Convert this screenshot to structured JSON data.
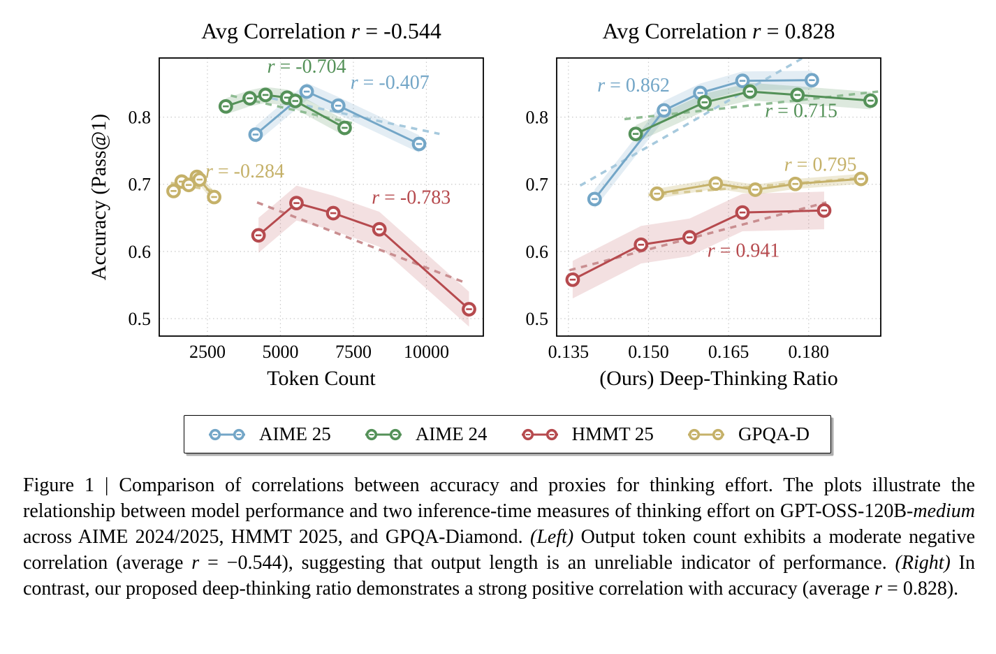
{
  "chart_data": [
    {
      "type": "line",
      "title": "Avg Correlation r = -0.544",
      "xlabel": "Token Count",
      "ylabel": "Accuracy (Pass@1)",
      "xlim": [
        850,
        11950
      ],
      "ylim": [
        0.474,
        0.888
      ],
      "grid": true,
      "x_ticks": [
        {
          "v": 2500,
          "label": "2500"
        },
        {
          "v": 5000,
          "label": "5000"
        },
        {
          "v": 7500,
          "label": "7500"
        },
        {
          "v": 10000,
          "label": "10000"
        }
      ],
      "y_ticks": [
        {
          "v": 0.8,
          "label": "0.8"
        },
        {
          "v": 0.7,
          "label": "0.7"
        },
        {
          "v": 0.6,
          "label": "0.6"
        },
        {
          "v": 0.5,
          "label": "0.5"
        }
      ],
      "series": [
        {
          "name": "AIME 25",
          "color": "#73A6C7",
          "dash_color": "#A6C9DD",
          "band": 0.013,
          "band_opacity": 0.2,
          "x": [
            4150,
            5900,
            6980,
            9750
          ],
          "y": [
            0.774,
            0.838,
            0.817,
            0.76
          ],
          "trend": {
            "x": [
              4700,
              10450
            ],
            "y": [
              0.828,
              0.775
            ]
          },
          "annotation": {
            "text": "r = -0.407",
            "x": 8750,
            "y": 0.842
          }
        },
        {
          "name": "AIME 24",
          "color": "#549158",
          "dash_color": "#8FBC93",
          "band": 0.012,
          "band_opacity": 0.2,
          "x": [
            3130,
            3950,
            4490,
            5230,
            5510,
            7200
          ],
          "y": [
            0.816,
            0.828,
            0.833,
            0.829,
            0.824,
            0.784
          ],
          "trend": {
            "x": [
              3300,
              7450
            ],
            "y": [
              0.832,
              0.791
            ]
          },
          "annotation": {
            "text": "r = -0.704",
            "x": 5900,
            "y": 0.866
          }
        },
        {
          "name": "HMMT 25",
          "color": "#B64A4E",
          "dash_color": "#C98E90",
          "band": 0.026,
          "band_opacity": 0.17,
          "x": [
            4250,
            5550,
            6810,
            8390,
            11460
          ],
          "y": [
            0.624,
            0.672,
            0.657,
            0.633,
            0.514
          ],
          "trend": {
            "x": [
              4200,
              11300
            ],
            "y": [
              0.673,
              0.554
            ]
          },
          "annotation": {
            "text": "r = -0.783",
            "x": 9480,
            "y": 0.671
          }
        },
        {
          "name": "GPQA-D",
          "color": "#C5B169",
          "dash_color": "#D6C993",
          "band": 0.008,
          "band_opacity": 0.27,
          "x": [
            1340,
            1620,
            1860,
            2140,
            2230,
            2730
          ],
          "y": [
            0.69,
            0.704,
            0.699,
            0.711,
            0.707,
            0.681
          ],
          "trend": {
            "x": [
              1250,
              2800
            ],
            "y": [
              0.702,
              0.69
            ]
          },
          "annotation": {
            "text": "r = -0.284",
            "x": 3780,
            "y": 0.71
          }
        }
      ]
    },
    {
      "type": "line",
      "title": "Avg Correlation r = 0.828",
      "xlabel": "(Ours) Deep-Thinking Ratio",
      "ylabel": "",
      "xlim": [
        0.1328,
        0.1935
      ],
      "ylim": [
        0.474,
        0.888
      ],
      "grid": true,
      "x_ticks": [
        {
          "v": 0.135,
          "label": "0.135"
        },
        {
          "v": 0.15,
          "label": "0.150"
        },
        {
          "v": 0.165,
          "label": "0.165"
        },
        {
          "v": 0.18,
          "label": "0.180"
        }
      ],
      "y_ticks": [
        {
          "v": 0.8,
          "label": "0.8"
        },
        {
          "v": 0.7,
          "label": "0.7"
        },
        {
          "v": 0.6,
          "label": "0.6"
        },
        {
          "v": 0.5,
          "label": "0.5"
        }
      ],
      "series": [
        {
          "name": "AIME 25",
          "color": "#73A6C7",
          "dash_color": "#A6C9DD",
          "band": 0.014,
          "band_opacity": 0.2,
          "x": [
            0.1399,
            0.1529,
            0.1597,
            0.1676,
            0.1806
          ],
          "y": [
            0.678,
            0.81,
            0.836,
            0.854,
            0.855
          ],
          "trend": {
            "x": [
              0.1372,
              0.179
            ],
            "y": [
              0.698,
              0.8885
            ]
          },
          "annotation": {
            "text": "r = 0.862",
            "x": 0.1472,
            "y": 0.838
          }
        },
        {
          "name": "AIME 24",
          "color": "#549158",
          "dash_color": "#8FBC93",
          "band": 0.013,
          "band_opacity": 0.2,
          "x": [
            0.1476,
            0.1605,
            0.169,
            0.1779,
            0.1916
          ],
          "y": [
            0.775,
            0.822,
            0.838,
            0.833,
            0.8245
          ],
          "trend": {
            "x": [
              0.1455,
              0.193
            ],
            "y": [
              0.797,
              0.838
            ]
          },
          "annotation": {
            "text": "r = 0.715",
            "x": 0.1786,
            "y": 0.8
          }
        },
        {
          "name": "HMMT 25",
          "color": "#B64A4E",
          "dash_color": "#C98E90",
          "band": 0.028,
          "band_opacity": 0.17,
          "x": [
            0.1358,
            0.1486,
            0.1577,
            0.1676,
            0.1829
          ],
          "y": [
            0.558,
            0.61,
            0.621,
            0.658,
            0.661
          ],
          "trend": {
            "x": [
              0.1352,
              0.1833
            ],
            "y": [
              0.572,
              0.673
            ]
          },
          "annotation": {
            "text": "r = 0.941",
            "x": 0.1678,
            "y": 0.592
          }
        },
        {
          "name": "GPQA-D",
          "color": "#C5B169",
          "dash_color": "#D6C993",
          "band": 0.0075,
          "band_opacity": 0.27,
          "x": [
            0.1516,
            0.1626,
            0.17,
            0.1775,
            0.1898
          ],
          "y": [
            0.686,
            0.701,
            0.692,
            0.7005,
            0.708
          ],
          "trend": {
            "x": [
              0.15,
              0.1908
            ],
            "y": [
              0.684,
              0.71
            ]
          },
          "annotation": {
            "text": "r = 0.795",
            "x": 0.1822,
            "y": 0.72
          }
        }
      ]
    }
  ],
  "legend": {
    "items": [
      {
        "label": "AIME 25",
        "color": "#73A6C7"
      },
      {
        "label": "AIME 24",
        "color": "#549158"
      },
      {
        "label": "HMMT 25",
        "color": "#B64A4E"
      },
      {
        "label": "GPQA-D",
        "color": "#C5B169"
      }
    ]
  },
  "caption": {
    "runs": [
      {
        "t": "Figure 1 | Comparison of correlations between accuracy and proxies for thinking effort.  The plots illustrate the relationship between model performance and two inference-time measures of thinking effort on GPT-OSS-120B-"
      },
      {
        "t": "medium",
        "i": true
      },
      {
        "t": " across AIME 2024/2025, HMMT 2025, and GPQA-Diamond.  ",
        "i": false
      },
      {
        "t": "(Left)",
        "i": true
      },
      {
        "t": " Output token count exhibits a moderate negative correlation (average "
      },
      {
        "t": "r",
        "i": true
      },
      {
        "t": " = −0.544), suggesting that output length is an unreliable indicator of performance.  "
      },
      {
        "t": "(Right)",
        "i": true
      },
      {
        "t": " In contrast, our proposed deep-thinking ratio demonstrates a strong positive correlation with accuracy (average "
      },
      {
        "t": "r",
        "i": true
      },
      {
        "t": " = 0.828)."
      }
    ]
  }
}
